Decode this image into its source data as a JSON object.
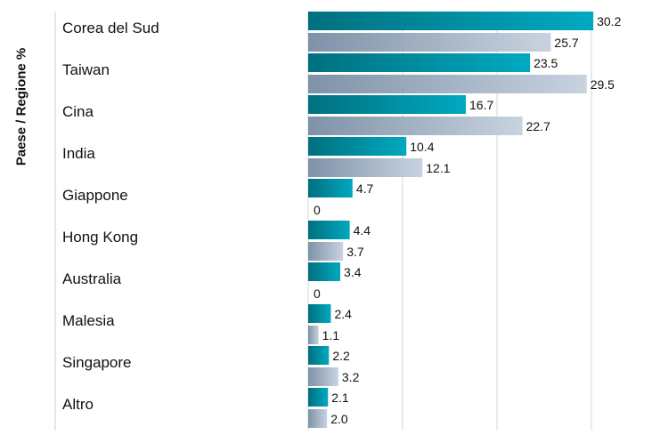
{
  "chart_data": {
    "type": "bar",
    "orientation": "horizontal",
    "ylabel": "Paese / Regione %",
    "xlabel": "",
    "categories": [
      "Corea del Sud",
      "Taiwan",
      "Cina",
      "India",
      "Giappone",
      "Hong Kong",
      "Australia",
      "Malesia",
      "Singapore",
      "Altro"
    ],
    "series": [
      {
        "values": [
          30.2,
          23.5,
          16.7,
          10.4,
          4.7,
          4.4,
          3.4,
          2.4,
          2.2,
          2.1
        ],
        "color": "#0097a7"
      },
      {
        "values": [
          25.7,
          29.5,
          22.7,
          12.1,
          0,
          3.7,
          0,
          1.1,
          3.2,
          2.0
        ],
        "color": "#a9b8cc"
      }
    ],
    "value_labels": [
      [
        "30.2",
        "23.5",
        "16.7",
        "10.4",
        "4.7",
        "4.4",
        "3.4",
        "2.4",
        "2.2",
        "2.1"
      ],
      [
        "25.7",
        "29.5",
        "22.7",
        "12.1",
        "0",
        "3.7",
        "0",
        "1.1",
        "3.2",
        "2.0"
      ]
    ],
    "xlim": [
      0,
      40
    ],
    "grid": true,
    "legend": "none",
    "colors": {
      "grid": "#d6d6d6",
      "axis_line": "#cfcfcf",
      "text": "#111111"
    }
  }
}
